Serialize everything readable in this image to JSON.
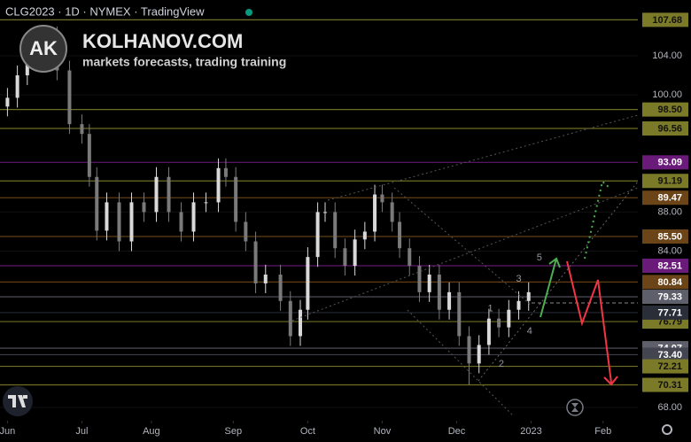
{
  "chart_data": {
    "type": "candlestick",
    "title": "CLG2023 · 1D · NYMEX · TradingView",
    "logo": {
      "initials": "AK",
      "brand": "KOLHANOV.COM",
      "tagline": "markets forecasts, trading training"
    },
    "up_color": "#d9d9d9",
    "down_color": "#7a7a7a",
    "x": [
      0,
      4,
      8,
      12,
      15,
      20,
      25,
      30,
      33,
      36,
      40,
      45,
      50,
      55,
      60,
      65,
      70,
      75,
      80,
      85,
      88,
      92,
      96,
      100,
      104,
      110,
      114,
      118,
      121,
      125,
      128,
      132,
      136,
      140,
      144,
      148,
      151,
      155,
      158,
      162,
      166,
      170,
      174,
      178,
      182,
      186,
      190,
      194,
      198,
      202,
      206,
      210
    ],
    "open": [
      98.8,
      99.7,
      102,
      104.3,
      105.2,
      106,
      102.5,
      97,
      96,
      91.6,
      86.1,
      89,
      85,
      89,
      88,
      91.6,
      88,
      86,
      89,
      89,
      92.5,
      91.6,
      87,
      85,
      80.7,
      81.6,
      78.9,
      75.3,
      78,
      83.4,
      88,
      88,
      84.3,
      82.5,
      85.2,
      86,
      89.8,
      89,
      87,
      84.3,
      82.5,
      79.8,
      81.6,
      78,
      79.8,
      75.3,
      72.5,
      74.4,
      77.1,
      76.2,
      78,
      78.9
    ],
    "high": [
      100.7,
      103,
      105.3,
      106.2,
      107,
      107,
      103.5,
      98,
      97,
      92.6,
      90,
      90,
      90,
      90,
      92.6,
      92.6,
      89,
      90,
      90,
      93.5,
      93.5,
      92.6,
      88,
      86,
      82.6,
      82.6,
      79.9,
      79,
      84.4,
      89,
      89,
      89,
      85.3,
      86.2,
      87,
      90.8,
      90.8,
      90,
      88,
      85.3,
      83.5,
      82.6,
      82.6,
      80.8,
      80.8,
      76.3,
      75.4,
      78.1,
      78.1,
      79,
      79.9,
      80.8
    ],
    "low": [
      97.8,
      98.7,
      101,
      103.3,
      104.2,
      101.5,
      96,
      95,
      90.6,
      85.1,
      85.1,
      84,
      84,
      87,
      87,
      87,
      85,
      85,
      88,
      88,
      90.6,
      86,
      84,
      79.7,
      79.7,
      77.9,
      74.3,
      74.3,
      77,
      82.4,
      87,
      83.3,
      81.5,
      81.5,
      84.2,
      85,
      88,
      86,
      83.3,
      81.5,
      78.8,
      78.8,
      77,
      77,
      74.3,
      70.3,
      71.5,
      73.4,
      75.2,
      75.2,
      77,
      77.9
    ],
    "close": [
      99.7,
      102,
      104.3,
      105.2,
      106,
      102.5,
      97,
      96,
      91.6,
      86.1,
      89,
      85,
      89,
      88,
      91.6,
      88,
      86,
      89,
      89,
      92.5,
      91.6,
      87,
      85,
      80.7,
      81.6,
      78.9,
      75.3,
      78,
      83.4,
      88,
      88,
      84.3,
      82.5,
      85.2,
      86,
      89.8,
      89,
      87,
      84.3,
      82.5,
      79.8,
      81.6,
      78,
      79.8,
      75.3,
      72.5,
      74.4,
      77.1,
      76.2,
      78,
      78.9,
      79.8
    ],
    "xlim": [
      -3,
      254
    ],
    "ylim": [
      66.64,
      109.71
    ],
    "yticks": [
      {
        "value": 104,
        "label": "104.00"
      },
      {
        "value": 100,
        "label": "100.00"
      },
      {
        "value": 88,
        "label": "88.00"
      },
      {
        "value": 84,
        "label": "84.00"
      },
      {
        "value": 68,
        "label": "68.00"
      }
    ],
    "xticks": [
      {
        "value": 0,
        "label": "Jun"
      },
      {
        "value": 30,
        "label": "Jul"
      },
      {
        "value": 58,
        "label": "Aug"
      },
      {
        "value": 91,
        "label": "Sep"
      },
      {
        "value": 121,
        "label": "Oct"
      },
      {
        "value": 151,
        "label": "Nov"
      },
      {
        "value": 181,
        "label": "Dec"
      },
      {
        "value": 211,
        "label": "2023"
      },
      {
        "value": 240,
        "label": "Feb"
      }
    ],
    "levels": [
      {
        "value": 107.68,
        "label": "107.68",
        "color": "#7a7a28",
        "text_color": "#111111"
      },
      {
        "value": 98.5,
        "label": "98.50",
        "color": "#7a7a28",
        "text_color": "#111111"
      },
      {
        "value": 96.56,
        "label": "96.56",
        "color": "#7a7a28",
        "text_color": "#111111"
      },
      {
        "value": 93.09,
        "label": "93.09",
        "color": "#6a1b7a",
        "text_color": "#ffffff"
      },
      {
        "value": 91.19,
        "label": "91.19",
        "color": "#7a7a28",
        "text_color": "#111111"
      },
      {
        "value": 89.47,
        "label": "89.47",
        "color": "#6b4418",
        "text_color": "#ffffff"
      },
      {
        "value": 85.5,
        "label": "85.50",
        "color": "#6b4418",
        "text_color": "#ffffff"
      },
      {
        "value": 82.51,
        "label": "82.51",
        "color": "#6a1b7a",
        "text_color": "#ffffff"
      },
      {
        "value": 80.84,
        "label": "80.84",
        "color": "#6b4418",
        "text_color": "#ffffff"
      },
      {
        "value": 79.33,
        "label": "79.33",
        "color": "#5d606b",
        "text_color": "#ffffff"
      },
      {
        "value": 76.79,
        "label": "76.79",
        "color": "#7a7a28",
        "text_color": "#111111"
      },
      {
        "value": 77.71,
        "label": "77.71",
        "color": "#2a2e39",
        "text_color": "#ffffff"
      },
      {
        "value": 74.07,
        "label": "74.07",
        "color": "#5d606b",
        "text_color": "#ffffff"
      },
      {
        "value": 73.4,
        "label": "73.40",
        "color": "#434651",
        "text_color": "#ffffff"
      },
      {
        "value": 72.21,
        "label": "72.21",
        "color": "#7a7a28",
        "text_color": "#111111"
      },
      {
        "value": 70.31,
        "label": "70.31",
        "color": "#7a7a28",
        "text_color": "#111111"
      }
    ],
    "wave_labels": [
      {
        "label": "1",
        "x": 194.6,
        "y": 78.1
      },
      {
        "label": "2",
        "x": 199,
        "y": 72.45
      },
      {
        "label": "3",
        "x": 206,
        "y": 81.15
      },
      {
        "label": "4",
        "x": 210.4,
        "y": 75.8
      },
      {
        "label": "5",
        "x": 214.3,
        "y": 83.3
      }
    ]
  }
}
